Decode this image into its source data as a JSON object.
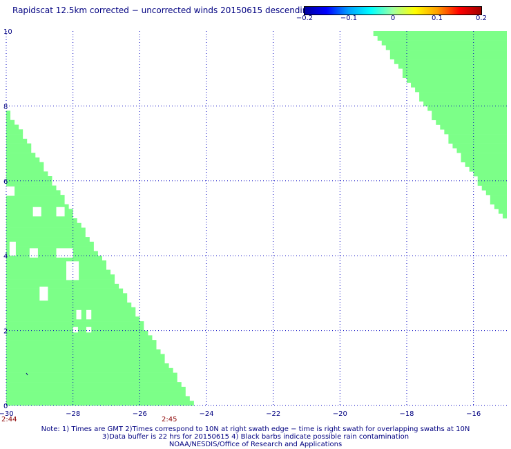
{
  "title": "Rapidscat 12.5km corrected − uncorrected winds 20150615 descending",
  "colorbar": {
    "colors": [
      "#0000a0",
      "#0000ff",
      "#00a0ff",
      "#00ffff",
      "#a0ffa0",
      "#ffff00",
      "#ffa000",
      "#ff0000",
      "#a00000"
    ],
    "tick_labels": [
      "−0.2",
      "−0.1",
      "0",
      "0.1",
      "0.2"
    ]
  },
  "map": {
    "lon_range": [
      -30,
      -15
    ],
    "lat_range": [
      0,
      10
    ],
    "x_tick_labels": [
      "−30",
      "−28",
      "−26",
      "−24",
      "−22",
      "−20",
      "−18",
      "−16"
    ],
    "y_tick_labels": [
      "0",
      "2",
      "4",
      "6",
      "8",
      "10"
    ],
    "swath_color": "#7cff88",
    "grid_color": "#0000c0",
    "time_labels": [
      {
        "text": "2:44",
        "lon": -30
      },
      {
        "text": "2:45",
        "lon": -25.2
      }
    ]
  },
  "notes": {
    "line1": "Note: 1) Times are GMT 2)Times correspond to 10N at right swath edge − time is right swath for overlapping swaths at 10N",
    "line2": "3)Data buffer is 22 hrs for 20150615 4) Black barbs indicate possible rain contamination",
    "line3": "NOAA/NESDIS/Office of Research and Applications"
  }
}
